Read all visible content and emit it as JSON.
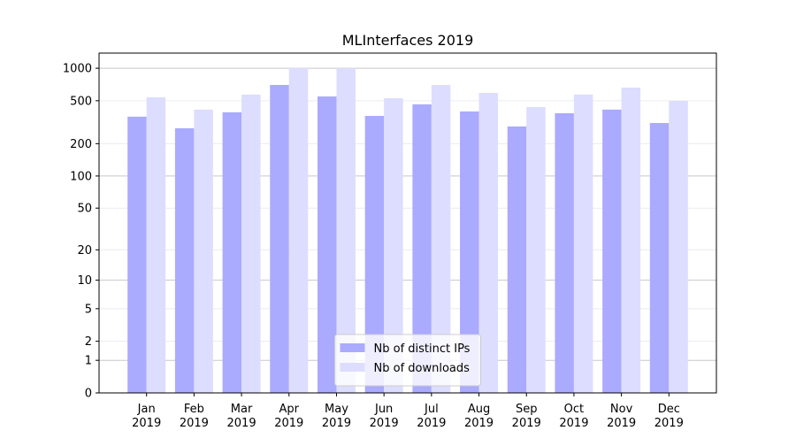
{
  "chart_data": {
    "type": "bar",
    "title": "MLInterfaces 2019",
    "categories": [
      "Jan 2019",
      "Feb 2019",
      "Mar 2019",
      "Apr 2019",
      "May 2019",
      "Jun 2019",
      "Jul 2019",
      "Aug 2019",
      "Sep 2019",
      "Oct 2019",
      "Nov 2019",
      "Dec 2019"
    ],
    "series": [
      {
        "name": "Nb of distinct IPs",
        "color": "#aaaaff",
        "values": [
          356,
          278,
          391,
          700,
          548,
          362,
          463,
          398,
          289,
          383,
          414,
          311
        ]
      },
      {
        "name": "Nb of downloads",
        "color": "#ddddff",
        "values": [
          538,
          414,
          570,
          1003,
          1000,
          528,
          700,
          591,
          437,
          570,
          662,
          498
        ]
      }
    ],
    "y_scale": "log1p",
    "ylim": [
      0,
      1380
    ],
    "yticks": [
      0,
      1,
      2,
      5,
      10,
      20,
      50,
      100,
      200,
      500,
      1000
    ],
    "grid": true,
    "legend": "lower center"
  }
}
